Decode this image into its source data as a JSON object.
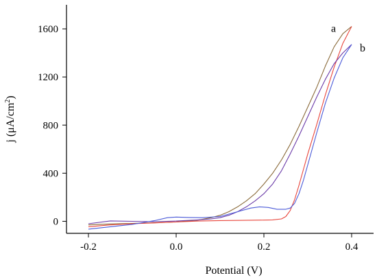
{
  "chart_data": {
    "type": "line",
    "title": "",
    "xlabel": "Potential (V)",
    "ylabel_main": "j (μA/cm",
    "ylabel_sup": "2",
    "ylabel_close": ")",
    "xlim": [
      -0.25,
      0.45
    ],
    "ylim": [
      -100,
      1800
    ],
    "x_ticks": [
      -0.2,
      0.0,
      0.2,
      0.4
    ],
    "x_tick_labels": [
      "-0.2",
      "0.0",
      "0.2",
      "0.4"
    ],
    "y_ticks": [
      0,
      400,
      800,
      1200,
      1600
    ],
    "y_tick_labels": [
      "0",
      "400",
      "800",
      "1200",
      "1600"
    ],
    "grid": false,
    "series": [
      {
        "name": "a",
        "color_forward": "#e8443a",
        "color_reverse": "#8a6a3a",
        "forward": {
          "x": [
            -0.2,
            -0.15,
            -0.1,
            -0.05,
            0.0,
            0.05,
            0.1,
            0.15,
            0.2,
            0.22,
            0.24,
            0.25,
            0.26,
            0.27,
            0.28,
            0.29,
            0.3,
            0.32,
            0.34,
            0.36,
            0.38,
            0.4
          ],
          "y": [
            -45,
            -30,
            -20,
            -13,
            -5,
            2,
            6,
            8,
            10,
            12,
            20,
            40,
            90,
            180,
            300,
            430,
            560,
            800,
            1050,
            1280,
            1480,
            1620
          ]
        },
        "reverse": {
          "x": [
            0.4,
            0.38,
            0.36,
            0.34,
            0.32,
            0.3,
            0.28,
            0.26,
            0.24,
            0.22,
            0.2,
            0.18,
            0.16,
            0.14,
            0.12,
            0.1,
            0.08,
            0.05,
            0.0,
            -0.05,
            -0.1,
            -0.15,
            -0.2
          ],
          "y": [
            1620,
            1560,
            1450,
            1290,
            1110,
            950,
            790,
            640,
            510,
            400,
            310,
            230,
            170,
            120,
            80,
            50,
            30,
            10,
            -5,
            -12,
            -18,
            -22,
            -30
          ]
        }
      },
      {
        "name": "b",
        "color_forward": "#4a5ad8",
        "color_reverse": "#6a3aa8",
        "forward": {
          "x": [
            -0.2,
            -0.15,
            -0.1,
            -0.05,
            -0.02,
            0.0,
            0.03,
            0.06,
            0.1,
            0.14,
            0.17,
            0.19,
            0.21,
            0.23,
            0.25,
            0.26,
            0.27,
            0.28,
            0.29,
            0.3,
            0.32,
            0.34,
            0.36,
            0.38,
            0.4
          ],
          "y": [
            -65,
            -45,
            -25,
            5,
            30,
            35,
            32,
            30,
            40,
            80,
            110,
            120,
            115,
            100,
            100,
            110,
            150,
            230,
            340,
            470,
            730,
            980,
            1190,
            1360,
            1470
          ]
        },
        "reverse": {
          "x": [
            0.4,
            0.38,
            0.36,
            0.34,
            0.32,
            0.3,
            0.28,
            0.26,
            0.24,
            0.22,
            0.2,
            0.18,
            0.16,
            0.14,
            0.12,
            0.1,
            0.08,
            0.05,
            0.0,
            -0.05,
            -0.1,
            -0.15,
            -0.2
          ],
          "y": [
            1470,
            1400,
            1310,
            1180,
            1030,
            870,
            710,
            560,
            420,
            310,
            230,
            170,
            120,
            80,
            50,
            30,
            20,
            12,
            2,
            -3,
            0,
            3,
            -20
          ]
        }
      }
    ]
  }
}
